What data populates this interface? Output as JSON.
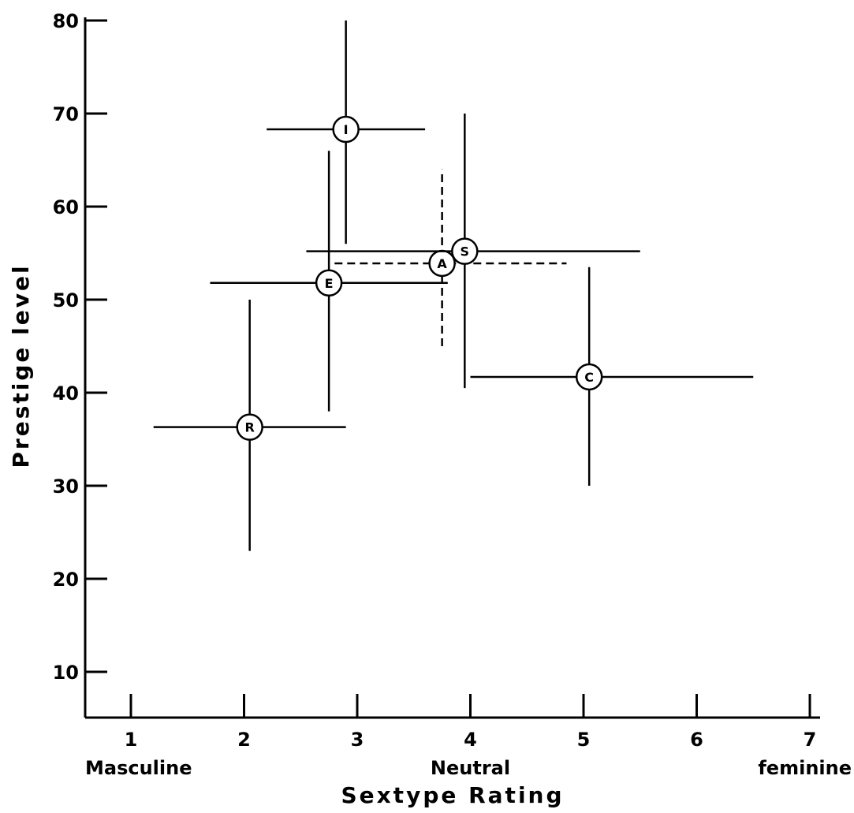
{
  "chart_data": {
    "type": "scatter",
    "title": "",
    "xlabel": "Sextype Rating",
    "ylabel": "Prestige level",
    "xlim": [
      0.6,
      7.0
    ],
    "ylim": [
      5,
      80
    ],
    "x_ticks": [
      1,
      2,
      3,
      4,
      5,
      6,
      7
    ],
    "y_ticks": [
      10,
      20,
      30,
      40,
      50,
      60,
      70,
      80
    ],
    "x_category_labels": [
      {
        "x": 1,
        "text": "Masculine"
      },
      {
        "x": 4,
        "text": "Neutral"
      },
      {
        "x": 7,
        "text": "feminine"
      }
    ],
    "grid": false,
    "points": [
      {
        "label": "R",
        "x": 2.05,
        "y": 36.3,
        "x_range": [
          1.2,
          2.9
        ],
        "y_range": [
          23,
          50
        ],
        "style": "solid"
      },
      {
        "label": "I",
        "x": 2.9,
        "y": 68.3,
        "x_range": [
          2.2,
          3.6
        ],
        "y_range": [
          56,
          80
        ],
        "style": "solid"
      },
      {
        "label": "E",
        "x": 2.75,
        "y": 51.8,
        "x_range": [
          1.7,
          3.8
        ],
        "y_range": [
          38,
          66
        ],
        "style": "solid"
      },
      {
        "label": "A",
        "x": 3.75,
        "y": 53.9,
        "x_range": [
          2.8,
          4.85
        ],
        "y_range": [
          45,
          64
        ],
        "style": "dashed"
      },
      {
        "label": "S",
        "x": 3.95,
        "y": 55.2,
        "x_range": [
          2.55,
          5.5
        ],
        "y_range": [
          40.5,
          70
        ],
        "style": "solid"
      },
      {
        "label": "C",
        "x": 5.05,
        "y": 41.7,
        "x_range": [
          4.0,
          6.5
        ],
        "y_range": [
          30,
          53.5
        ],
        "style": "solid"
      }
    ]
  }
}
